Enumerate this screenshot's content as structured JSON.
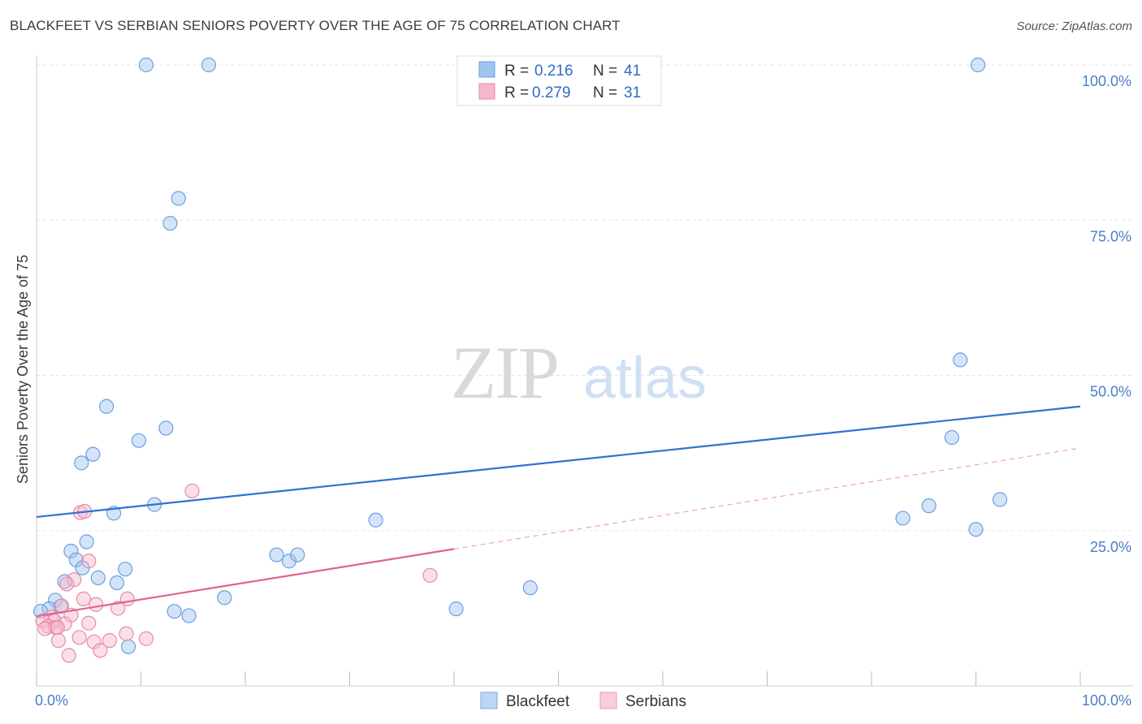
{
  "title": "BLACKFEET VS SERBIAN SENIORS POVERTY OVER THE AGE OF 75 CORRELATION CHART",
  "source": "Source: ZipAtlas.com",
  "watermark": {
    "zip": "ZIP",
    "atlas": "atlas"
  },
  "legend": {
    "rows": [
      {
        "r_label": "R =",
        "r_value": "0.216",
        "n_label": "N =",
        "n_value": "41",
        "color": "#9ec4ef",
        "stroke": "#6a9fe0"
      },
      {
        "r_label": "R =",
        "r_value": "0.279",
        "n_label": "N =",
        "n_value": "31",
        "color": "#f6b8ca",
        "stroke": "#e88aa8"
      }
    ]
  },
  "bottom_legend": [
    {
      "label": "Blackfeet",
      "color": "#bcd6f5",
      "stroke": "#7aa8e3"
    },
    {
      "label": "Serbians",
      "color": "#f9cdd9",
      "stroke": "#ec9ab3"
    }
  ],
  "chart_data": {
    "type": "scatter",
    "ylabel": "Seniors Poverty Over the Age of 75",
    "xlabel": "",
    "xlim": [
      0,
      100
    ],
    "ylim": [
      0,
      100
    ],
    "x_tick_labels": [
      "0.0%",
      "100.0%"
    ],
    "y_tick_labels": [
      "25.0%",
      "50.0%",
      "75.0%",
      "100.0%"
    ],
    "y_ticks": [
      25,
      50,
      75,
      100
    ],
    "grid": true,
    "series": [
      {
        "name": "Blackfeet",
        "color": "#9ec4ef",
        "stroke": "#6a9fe0",
        "line_color": "#2f72d0",
        "trend": {
          "x0": 0,
          "y0": 27.2,
          "x1": 100,
          "y1": 45.0,
          "dashed_from": null
        },
        "points": [
          [
            10.5,
            100
          ],
          [
            16.5,
            100
          ],
          [
            90.2,
            100
          ],
          [
            13.6,
            78.5
          ],
          [
            12.8,
            74.5
          ],
          [
            88.5,
            52.5
          ],
          [
            6.7,
            45
          ],
          [
            9.8,
            39.5
          ],
          [
            12.4,
            41.5
          ],
          [
            5.4,
            37.3
          ],
          [
            4.3,
            35.9
          ],
          [
            7.4,
            27.8
          ],
          [
            11.3,
            29.2
          ],
          [
            32.5,
            26.7
          ],
          [
            83.0,
            27.0
          ],
          [
            85.5,
            29.0
          ],
          [
            92.3,
            30.0
          ],
          [
            87.7,
            40.0
          ],
          [
            90.0,
            25.2
          ],
          [
            4.8,
            23.2
          ],
          [
            3.3,
            21.7
          ],
          [
            3.8,
            20.3
          ],
          [
            4.4,
            19.0
          ],
          [
            8.5,
            18.8
          ],
          [
            23.0,
            21.1
          ],
          [
            24.2,
            20.1
          ],
          [
            25.0,
            21.1
          ],
          [
            2.7,
            16.8
          ],
          [
            5.9,
            17.4
          ],
          [
            7.7,
            16.6
          ],
          [
            47.3,
            15.8
          ],
          [
            1.8,
            13.8
          ],
          [
            2.3,
            12.8
          ],
          [
            1.2,
            12.4
          ],
          [
            0.4,
            12.0
          ],
          [
            18.0,
            14.2
          ],
          [
            13.2,
            12.0
          ],
          [
            14.6,
            11.3
          ],
          [
            40.2,
            12.4
          ],
          [
            8.8,
            6.3
          ]
        ]
      },
      {
        "name": "Serbians",
        "color": "#f6b8ca",
        "stroke": "#e88aa8",
        "line_color": "#e0628d",
        "trend": {
          "x0": 0,
          "y0": 11.2,
          "x1": 100,
          "y1": 38.3,
          "dashed_from": 40
        },
        "points": [
          [
            14.9,
            31.4
          ],
          [
            4.2,
            27.9
          ],
          [
            4.6,
            28.1
          ],
          [
            5.0,
            20.1
          ],
          [
            3.6,
            17.1
          ],
          [
            2.9,
            16.4
          ],
          [
            37.7,
            17.8
          ],
          [
            4.5,
            14.0
          ],
          [
            8.7,
            14.0
          ],
          [
            5.7,
            13.1
          ],
          [
            7.8,
            12.5
          ],
          [
            2.4,
            12.9
          ],
          [
            1.4,
            11.1
          ],
          [
            3.3,
            11.4
          ],
          [
            1.7,
            10.5
          ],
          [
            2.7,
            10.0
          ],
          [
            0.6,
            10.5
          ],
          [
            5.0,
            10.1
          ],
          [
            1.1,
            9.6
          ],
          [
            1.8,
            9.4
          ],
          [
            0.8,
            9.2
          ],
          [
            2.0,
            9.4
          ],
          [
            8.6,
            8.4
          ],
          [
            4.1,
            7.8
          ],
          [
            2.1,
            7.3
          ],
          [
            10.5,
            7.6
          ],
          [
            7.0,
            7.3
          ],
          [
            5.5,
            7.1
          ],
          [
            6.1,
            5.7
          ],
          [
            3.1,
            4.9
          ]
        ]
      }
    ]
  }
}
